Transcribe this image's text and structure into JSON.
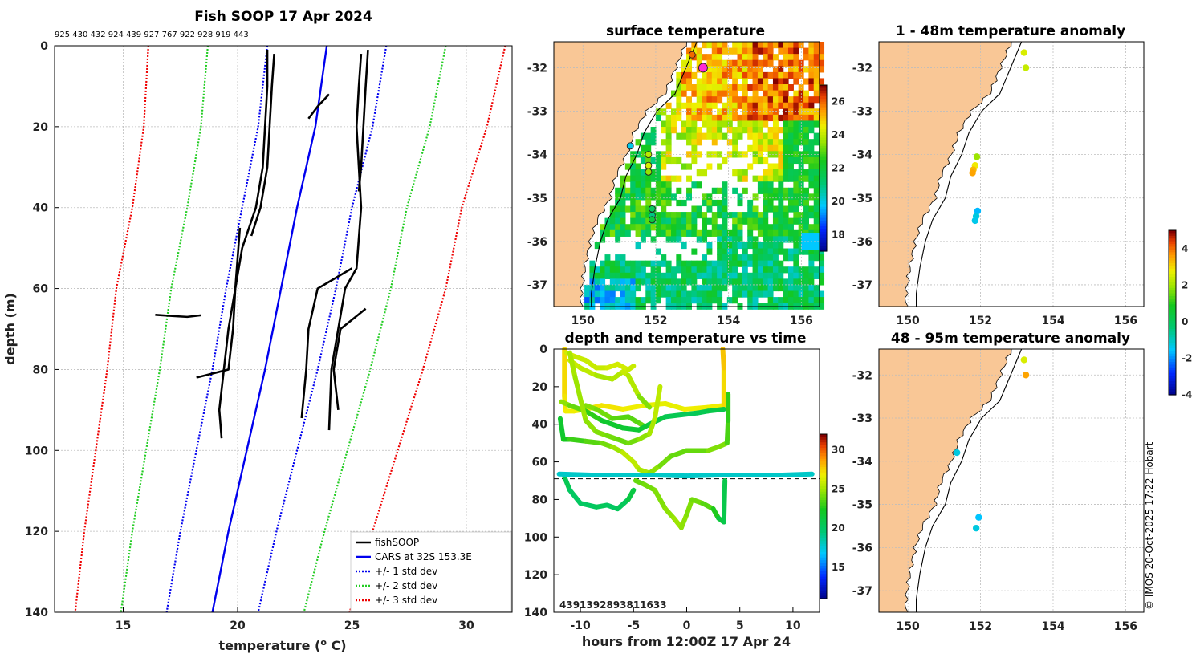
{
  "copyright": "© IMOS 20-Oct-2025 17:22 Hobart",
  "chart_data": [
    {
      "id": "profile",
      "type": "line",
      "title": "Fish SOOP 17 Apr 2024",
      "top_labels": "925 430 432 924 439 927 767 922 928 919 443",
      "xlabel": "temperature (",
      "xlabel_sup": "o",
      "xlabel_end": " C)",
      "ylabel": "depth (m)",
      "xlim": [
        12,
        32
      ],
      "ylim": [
        0,
        140
      ],
      "y_reversed": true,
      "xticks": [
        15,
        20,
        25,
        30
      ],
      "yticks": [
        0,
        20,
        40,
        60,
        80,
        100,
        120,
        140
      ],
      "legend": {
        "position": "bottom-right",
        "entries": [
          {
            "label": "fishSOOP",
            "color": "#000000",
            "style": "solid"
          },
          {
            "label": "CARS at 32S 153.3E",
            "color": "#0000ee",
            "style": "solid"
          },
          {
            "label": "+/- 1 std dev",
            "color": "#0000ee",
            "style": "dotted"
          },
          {
            "label": "+/- 2 std dev",
            "color": "#22cc22",
            "style": "dotted"
          },
          {
            "label": "+/- 3 std dev",
            "color": "#ee0000",
            "style": "dotted"
          }
        ]
      },
      "cars_depth": [
        0,
        20,
        40,
        60,
        80,
        100,
        120,
        140
      ],
      "cars_mean": [
        23.9,
        23.4,
        22.6,
        21.9,
        21.2,
        20.4,
        19.6,
        18.9
      ],
      "cars_std": [
        2.6,
        2.5,
        2.4,
        2.4,
        2.3,
        2.2,
        2.1,
        2.0
      ],
      "fish_series": [
        {
          "name": "fishSOOP",
          "depth": [
            1,
            10,
            20,
            30,
            40,
            50,
            60,
            70,
            80,
            90,
            97
          ],
          "temp": [
            21.3,
            21.3,
            21.2,
            21.1,
            20.8,
            20.2,
            19.9,
            19.6,
            19.4,
            19.2,
            19.3
          ]
        },
        {
          "name": "fishSOOP",
          "depth": [
            2,
            10,
            20,
            30,
            40,
            47
          ],
          "temp": [
            21.6,
            21.5,
            21.4,
            21.3,
            21.0,
            20.6
          ]
        },
        {
          "name": "fishSOOP",
          "depth": [
            45,
            60,
            70,
            80,
            82
          ],
          "temp": [
            20.1,
            19.9,
            19.8,
            19.6,
            18.2
          ]
        },
        {
          "name": "fishSOOP",
          "depth": [
            66.5,
            66.8,
            67.0,
            66.6
          ],
          "temp": [
            16.4,
            17.2,
            17.8,
            18.4
          ]
        },
        {
          "name": "fishSOOP",
          "depth": [
            1,
            10,
            20,
            30,
            36
          ],
          "temp": [
            25.7,
            25.6,
            25.5,
            25.4,
            25.3
          ]
        },
        {
          "name": "fishSOOP",
          "depth": [
            2,
            10,
            20,
            30,
            40,
            55,
            60,
            70,
            80,
            95
          ],
          "temp": [
            25.4,
            25.3,
            25.2,
            25.3,
            25.4,
            25.2,
            24.7,
            24.4,
            24.1,
            24.0
          ]
        },
        {
          "name": "fishSOOP",
          "depth": [
            12,
            15,
            18
          ],
          "temp": [
            24.0,
            23.5,
            23.1
          ]
        },
        {
          "name": "fishSOOP",
          "depth": [
            55,
            60,
            70,
            80,
            92
          ],
          "temp": [
            25.0,
            23.5,
            23.1,
            23.0,
            22.8
          ]
        },
        {
          "name": "fishSOOP",
          "depth": [
            65,
            70,
            80,
            90
          ],
          "temp": [
            25.6,
            24.5,
            24.2,
            24.4
          ]
        }
      ]
    },
    {
      "id": "sst",
      "type": "heatmap",
      "title": "surface temperature",
      "xlim": [
        149.2,
        156.5
      ],
      "ylim": [
        -37.5,
        -31.4
      ],
      "xticks": [
        150,
        152,
        154,
        156
      ],
      "yticks": [
        -32,
        -33,
        -34,
        -35,
        -36,
        -37
      ],
      "colorbar": {
        "min": 17,
        "max": 27,
        "ticks": [
          18,
          20,
          22,
          24,
          26
        ]
      },
      "station_lon": [
        153.0,
        151.3,
        151.8,
        151.8,
        151.8,
        151.9,
        151.9,
        151.9,
        153.3
      ],
      "station_lat": [
        -31.7,
        -33.8,
        -34.0,
        -34.25,
        -34.4,
        -35.25,
        -35.4,
        -35.5,
        -32.0
      ],
      "station_val": [
        26.0,
        20.0,
        24.0,
        24.3,
        23.6,
        21.5,
        21.0,
        22.0,
        27.0
      ]
    },
    {
      "id": "anom1",
      "type": "scatter",
      "title": "1 - 48m temperature anomaly",
      "xlim": [
        149.2,
        156.5
      ],
      "ylim": [
        -37.5,
        -31.4
      ],
      "xticks": [
        150,
        152,
        154,
        156
      ],
      "yticks": [
        -32,
        -33,
        -34,
        -35,
        -36,
        -37
      ],
      "lon": [
        153.2,
        153.25,
        151.9,
        151.85,
        151.8,
        151.78,
        151.92,
        151.88,
        151.85
      ],
      "lat": [
        -31.65,
        -32.0,
        -34.05,
        -34.25,
        -34.35,
        -34.42,
        -35.3,
        -35.42,
        -35.52
      ],
      "value": [
        2.6,
        2.4,
        2.0,
        2.9,
        3.4,
        3.6,
        -1.6,
        -1.2,
        -1.3
      ]
    },
    {
      "id": "anom2",
      "type": "scatter",
      "title": "48 - 95m temperature anomaly",
      "xlim": [
        149.2,
        156.5
      ],
      "ylim": [
        -37.5,
        -31.4
      ],
      "xticks": [
        150,
        152,
        154,
        156
      ],
      "yticks": [
        -32,
        -33,
        -34,
        -35,
        -36,
        -37
      ],
      "lon": [
        153.2,
        153.25,
        151.35,
        151.95,
        151.88
      ],
      "lat": [
        -31.65,
        -32.0,
        -33.8,
        -35.3,
        -35.55
      ],
      "value": [
        2.6,
        3.6,
        -1.2,
        -1.5,
        -1.2
      ],
      "colorbar": {
        "min": -4,
        "max": 5,
        "ticks": [
          -4,
          -2,
          0,
          2,
          4
        ]
      }
    },
    {
      "id": "timeseries",
      "type": "scatter",
      "title": "depth and temperature vs time",
      "xlabel": "hours from 12:00Z 17 Apr 24",
      "xlim": [
        -12.5,
        12.5
      ],
      "ylim": [
        0,
        140
      ],
      "y_reversed": true,
      "xticks": [
        -10,
        -5,
        0,
        5,
        10
      ],
      "yticks": [
        0,
        20,
        40,
        60,
        80,
        100,
        120,
        140
      ],
      "dashed_depth": 69,
      "overlap_label": "4391392893811633",
      "colorbar": {
        "min": 11,
        "max": 32,
        "ticks": [
          15,
          20,
          25,
          30
        ]
      },
      "tracks": [
        {
          "t": [
            -11.5,
            -11.5,
            -11.4,
            -10.6,
            -9.5,
            -8.0,
            -6.0,
            -4.0,
            -2.0,
            -0.2,
            2.0,
            3.5,
            3.5,
            3.4
          ],
          "d": [
            0,
            25,
            33,
            33,
            32,
            30,
            32,
            30,
            29,
            32,
            31,
            30,
            10,
            0
          ],
          "T": [
            27.5,
            27.5,
            27,
            27,
            27,
            27.5,
            27,
            27,
            26.5,
            27,
            27,
            27,
            28,
            28
          ]
        },
        {
          "t": [
            -11.3,
            -10.5,
            -9.5,
            -8.5,
            -7.5,
            -6.5,
            -5.5,
            -5.0
          ],
          "d": [
            2,
            4,
            6,
            10,
            10,
            8,
            11,
            9
          ],
          "T": [
            26.5,
            26,
            26,
            26,
            26,
            26.5,
            26,
            26
          ]
        },
        {
          "t": [
            -11.0,
            -10.0,
            -8.5,
            -7.0,
            -6.0,
            -5.5,
            -4.5,
            -3.5
          ],
          "d": [
            6,
            10,
            14,
            16,
            12,
            14,
            25,
            31
          ],
          "T": [
            26,
            26,
            25.5,
            25,
            26,
            26,
            25,
            24
          ]
        },
        {
          "t": [
            -9.5,
            -8.5,
            -7.0,
            -5.5,
            -4.3,
            -4.0
          ],
          "d": [
            30,
            32,
            37,
            36,
            40,
            41
          ],
          "T": [
            24.5,
            24.5,
            24,
            23.5,
            24,
            24
          ]
        },
        {
          "t": [
            -11.9,
            -11.6,
            -11.0,
            -9.5,
            -8.0,
            -7.0,
            -6.0,
            -5.0,
            -4.5,
            -3.5,
            -2.5,
            -1.5,
            0,
            1.0,
            2.0,
            3.0,
            3.8,
            3.9,
            3.9
          ],
          "d": [
            37,
            48,
            48,
            49,
            50,
            52,
            55,
            60,
            64,
            66,
            62,
            57,
            54,
            54,
            54,
            52,
            50,
            38,
            24
          ],
          "T": [
            22,
            22,
            23,
            23.5,
            24,
            24.5,
            25.5,
            26,
            25.5,
            25,
            24.5,
            24,
            24,
            24,
            24,
            25,
            24,
            23,
            23
          ]
        },
        {
          "t": [
            -11.8,
            -11.0,
            -9.5,
            -8.0,
            -6.0,
            -4.5,
            -3.5,
            -2.0,
            -0.5,
            1.0,
            2.0,
            3.5
          ],
          "d": [
            28,
            30,
            33,
            38,
            42,
            43,
            40,
            36,
            35,
            34,
            33,
            32
          ],
          "T": [
            25,
            24.5,
            23.5,
            22.5,
            21.5,
            22,
            21.5,
            21,
            20.5,
            20.5,
            21,
            21
          ]
        },
        {
          "t": [
            -11.0,
            -10.5,
            -9.5,
            -8.5,
            -7.5,
            -6.5,
            -5.5,
            -4.5,
            -3.5,
            -3.0,
            -2.5
          ],
          "d": [
            2,
            15,
            38,
            44,
            46,
            48,
            50,
            48,
            45,
            37,
            20
          ],
          "T": [
            25.5,
            25,
            25,
            24.5,
            24.5,
            24,
            24,
            24.5,
            25,
            25.5,
            26
          ]
        },
        {
          "t": [
            -11.5,
            -11.0,
            -10.0,
            -8.5,
            -7.5,
            -6.5,
            -5.5,
            -5.0
          ],
          "d": [
            68,
            75,
            82,
            84,
            83,
            85,
            80,
            75
          ],
          "T": [
            21,
            20.5,
            20,
            20.5,
            20.5,
            20,
            21,
            21.5
          ]
        },
        {
          "t": [
            -4.8,
            -4.0,
            -3.0,
            -2.0,
            -1.2,
            -0.5,
            0,
            0.5,
            1.5,
            2.5,
            3.0,
            3.5,
            3.6
          ],
          "d": [
            70,
            72,
            75,
            85,
            90,
            95,
            88,
            80,
            82,
            85,
            90,
            92,
            70
          ],
          "T": [
            24,
            24,
            24.5,
            24.5,
            25,
            25,
            24.5,
            24.5,
            24,
            23.5,
            22,
            21,
            21
          ]
        },
        {
          "t": [
            -12.0,
            -9.0,
            -6.0,
            -3.0,
            0,
            3.0,
            6.0,
            9.0,
            11.8
          ],
          "d": [
            66.5,
            67,
            67,
            67,
            67.5,
            67,
            67,
            67,
            66.5
          ],
          "T": [
            18,
            18,
            18,
            18,
            18,
            18,
            18,
            18,
            18
          ]
        }
      ]
    }
  ]
}
